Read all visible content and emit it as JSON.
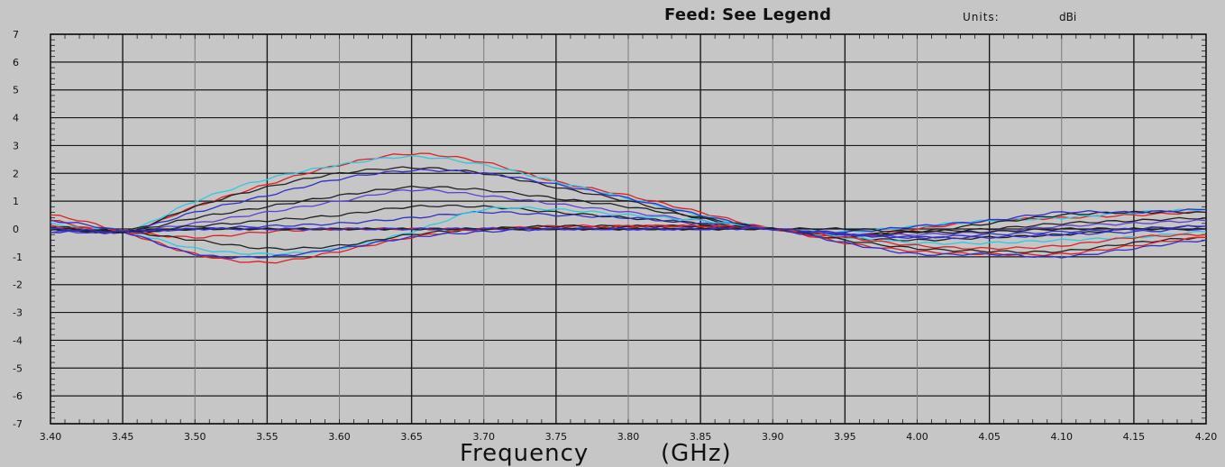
{
  "header": {
    "feed": "Feed: See Legend",
    "units_label": "Units:",
    "units_value": "dBi"
  },
  "chart_data": {
    "type": "line",
    "title": "Feed: See Legend",
    "units": "dBi",
    "xlabel_text": "Frequency",
    "xlabel_unit": "(GHz)",
    "xlim": [
      3.4,
      4.2
    ],
    "ylim": [
      -7,
      7
    ],
    "x_ticks": [
      "3.40",
      "3.45",
      "3.50",
      "3.55",
      "3.60",
      "3.65",
      "3.70",
      "3.75",
      "3.80",
      "3.85",
      "3.90",
      "3.95",
      "4.00",
      "4.05",
      "4.10",
      "4.15",
      "4.20"
    ],
    "y_ticks": [
      "7",
      "6",
      "5",
      "4",
      "3",
      "2",
      "1",
      "0",
      "-1",
      "-2",
      "-3",
      "-4",
      "-5",
      "-6",
      "-7"
    ],
    "grid": true,
    "x": [
      3.4,
      3.45,
      3.5,
      3.55,
      3.6,
      3.65,
      3.7,
      3.75,
      3.8,
      3.85,
      3.9,
      3.95,
      4.0,
      4.05,
      4.1,
      4.15,
      4.2
    ],
    "series": [
      {
        "color": "#e02020",
        "values": [
          0.3,
          -0.1,
          0.8,
          1.6,
          2.3,
          2.7,
          2.4,
          1.7,
          1.2,
          0.6,
          0.0,
          -0.3,
          0.0,
          0.3,
          0.4,
          0.5,
          0.6
        ]
      },
      {
        "color": "#30c8e0",
        "values": [
          0.2,
          -0.1,
          1.0,
          1.8,
          2.3,
          2.6,
          2.3,
          1.7,
          1.1,
          0.5,
          0.0,
          -0.1,
          0.1,
          0.3,
          0.4,
          0.6,
          0.7
        ]
      },
      {
        "color": "#202020",
        "values": [
          0.1,
          -0.1,
          0.8,
          1.5,
          2.0,
          2.2,
          2.0,
          1.5,
          1.0,
          0.4,
          0.0,
          -0.2,
          -0.1,
          0.2,
          0.5,
          0.6,
          0.6
        ]
      },
      {
        "color": "#3030c8",
        "values": [
          0.0,
          -0.1,
          0.6,
          1.2,
          1.8,
          2.1,
          2.0,
          1.6,
          1.1,
          0.5,
          0.0,
          -0.1,
          0.1,
          0.3,
          0.6,
          0.6,
          0.7
        ]
      },
      {
        "color": "#202020",
        "values": [
          0.0,
          -0.1,
          0.4,
          0.8,
          1.2,
          1.5,
          1.4,
          1.1,
          0.8,
          0.4,
          0.0,
          -0.2,
          -0.1,
          0.0,
          0.2,
          0.3,
          0.4
        ]
      },
      {
        "color": "#6040d0",
        "values": [
          -0.1,
          -0.1,
          0.2,
          0.6,
          1.0,
          1.4,
          1.2,
          0.9,
          0.6,
          0.3,
          0.0,
          -0.2,
          -0.2,
          -0.1,
          0.1,
          0.2,
          0.3
        ]
      },
      {
        "color": "#202020",
        "values": [
          0.0,
          -0.1,
          0.1,
          0.3,
          0.5,
          0.8,
          0.8,
          0.6,
          0.4,
          0.2,
          0.0,
          -0.3,
          -0.4,
          -0.3,
          -0.2,
          0.0,
          0.1
        ]
      },
      {
        "color": "#3030c8",
        "values": [
          -0.1,
          -0.1,
          0.0,
          0.1,
          0.2,
          0.4,
          0.6,
          0.5,
          0.4,
          0.2,
          0.0,
          -0.2,
          -0.3,
          -0.3,
          -0.2,
          -0.1,
          0.0
        ]
      },
      {
        "color": "#30c8e0",
        "values": [
          0.0,
          -0.1,
          -0.7,
          -0.9,
          -0.7,
          -0.1,
          0.7,
          0.7,
          0.5,
          0.3,
          0.0,
          -0.3,
          -0.5,
          -0.5,
          -0.4,
          -0.3,
          -0.1
        ]
      },
      {
        "color": "#e02020",
        "values": [
          0.1,
          -0.1,
          -0.3,
          -0.1,
          0.0,
          0.0,
          0.0,
          0.1,
          0.1,
          0.1,
          0.0,
          -0.3,
          -0.6,
          -0.7,
          -0.6,
          -0.3,
          -0.2
        ]
      },
      {
        "color": "#202020",
        "values": [
          0.0,
          -0.1,
          -0.4,
          -0.7,
          -0.6,
          -0.2,
          0.0,
          0.1,
          0.1,
          0.1,
          0.0,
          -0.4,
          -0.7,
          -0.8,
          -0.8,
          -0.5,
          -0.3
        ]
      },
      {
        "color": "#e02020",
        "values": [
          0.5,
          -0.1,
          -0.9,
          -1.2,
          -0.8,
          -0.3,
          0.0,
          0.0,
          0.1,
          0.1,
          0.0,
          -0.5,
          -0.8,
          -0.9,
          -0.9,
          -0.6,
          -0.3
        ]
      },
      {
        "color": "#3030c8",
        "values": [
          0.3,
          -0.1,
          -0.9,
          -1.0,
          -0.7,
          -0.3,
          -0.1,
          0.0,
          0.0,
          0.0,
          0.0,
          -0.5,
          -0.9,
          -0.9,
          -1.0,
          -0.7,
          -0.4
        ]
      },
      {
        "color": "#202020",
        "values": [
          0.0,
          -0.1,
          0.0,
          0.0,
          0.0,
          0.0,
          0.0,
          0.0,
          0.0,
          0.0,
          0.0,
          0.0,
          -0.1,
          -0.1,
          0.0,
          0.0,
          0.0
        ]
      },
      {
        "color": "#3030c8",
        "values": [
          0.0,
          -0.1,
          0.0,
          0.0,
          0.0,
          0.0,
          0.0,
          0.0,
          0.0,
          0.0,
          0.0,
          -0.2,
          -0.3,
          -0.2,
          -0.1,
          0.0,
          0.1
        ]
      }
    ]
  }
}
